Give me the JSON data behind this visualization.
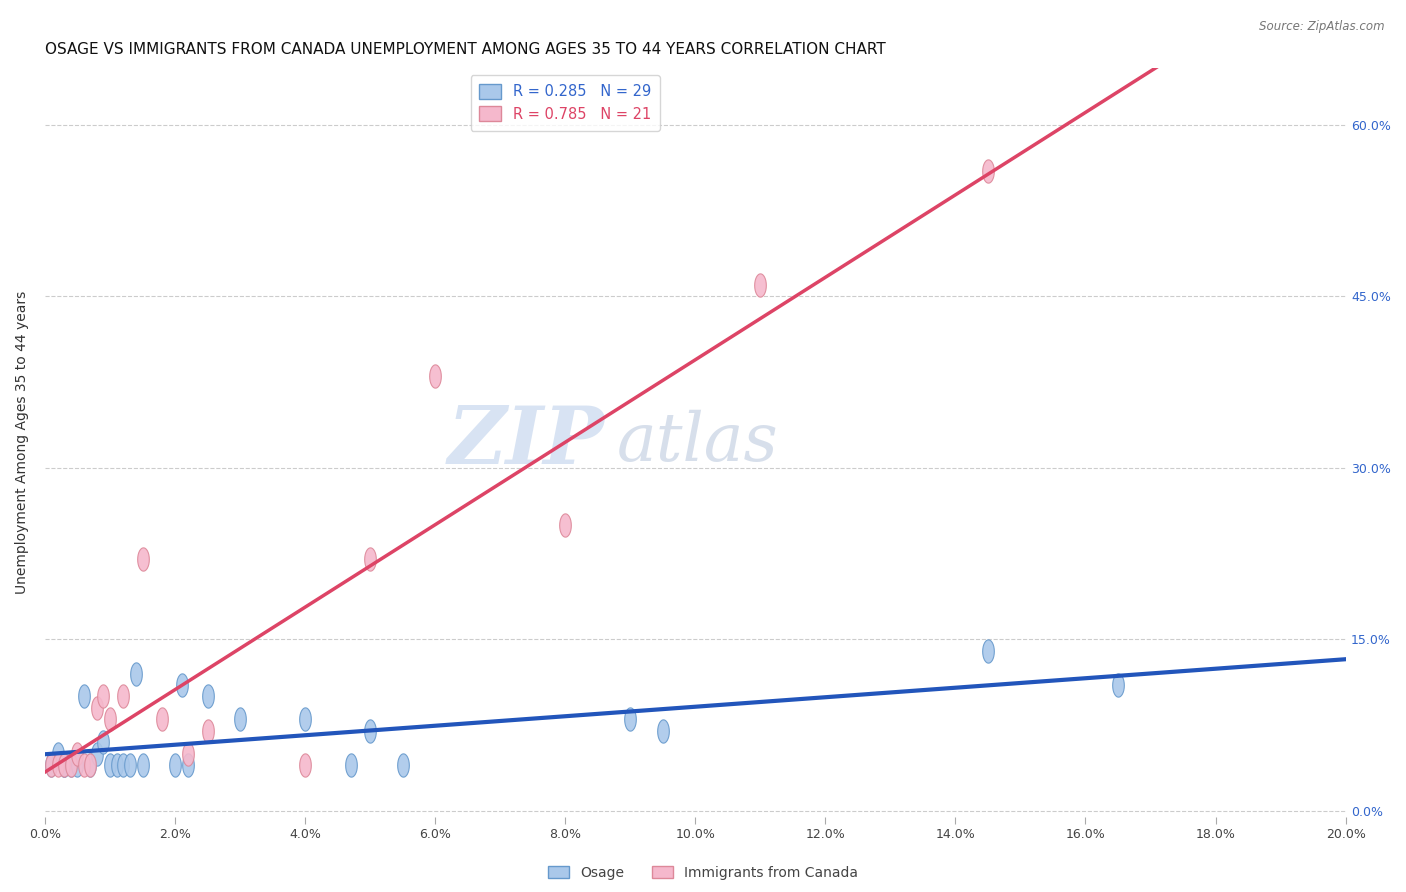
{
  "title": "OSAGE VS IMMIGRANTS FROM CANADA UNEMPLOYMENT AMONG AGES 35 TO 44 YEARS CORRELATION CHART",
  "source": "Source: ZipAtlas.com",
  "xlim": [
    0.0,
    0.2
  ],
  "ylim": [
    -0.005,
    0.65
  ],
  "watermark_zip": "ZIP",
  "watermark_atlas": "atlas",
  "series1_name": "Osage",
  "series2_name": "Immigrants from Canada",
  "series1_color_fill": "#aac8ea",
  "series1_color_edge": "#6699cc",
  "series2_color_fill": "#f5b8cc",
  "series2_color_edge": "#dd8899",
  "series1_line_color": "#2255bb",
  "series2_line_color": "#dd4466",
  "legend_label1": "R = 0.285   N = 29",
  "legend_label2": "R = 0.785   N = 21",
  "legend_color1": "#3366cc",
  "legend_color2": "#dd4466",
  "osage_x": [
    0.001,
    0.002,
    0.003,
    0.003,
    0.004,
    0.005,
    0.006,
    0.007,
    0.008,
    0.009,
    0.01,
    0.011,
    0.012,
    0.013,
    0.014,
    0.015,
    0.02,
    0.021,
    0.022,
    0.025,
    0.03,
    0.04,
    0.047,
    0.05,
    0.055,
    0.09,
    0.095,
    0.145,
    0.165
  ],
  "osage_y": [
    0.04,
    0.05,
    0.04,
    0.04,
    0.04,
    0.04,
    0.1,
    0.04,
    0.05,
    0.06,
    0.04,
    0.04,
    0.04,
    0.04,
    0.12,
    0.04,
    0.04,
    0.11,
    0.04,
    0.1,
    0.08,
    0.08,
    0.04,
    0.07,
    0.04,
    0.08,
    0.07,
    0.14,
    0.11
  ],
  "canada_x": [
    0.001,
    0.002,
    0.003,
    0.004,
    0.005,
    0.006,
    0.007,
    0.008,
    0.009,
    0.01,
    0.012,
    0.015,
    0.018,
    0.022,
    0.025,
    0.04,
    0.05,
    0.06,
    0.08,
    0.11,
    0.145
  ],
  "canada_y": [
    0.04,
    0.04,
    0.04,
    0.04,
    0.05,
    0.04,
    0.04,
    0.09,
    0.1,
    0.08,
    0.1,
    0.22,
    0.08,
    0.05,
    0.07,
    0.04,
    0.22,
    0.38,
    0.25,
    0.46,
    0.56
  ],
  "grid_color": "#cccccc",
  "background_color": "#ffffff",
  "y_tick_vals": [
    0.0,
    0.15,
    0.3,
    0.45,
    0.6
  ],
  "x_tick_vals": [
    0.0,
    0.02,
    0.04,
    0.06,
    0.08,
    0.1,
    0.12,
    0.14,
    0.16,
    0.18,
    0.2
  ]
}
